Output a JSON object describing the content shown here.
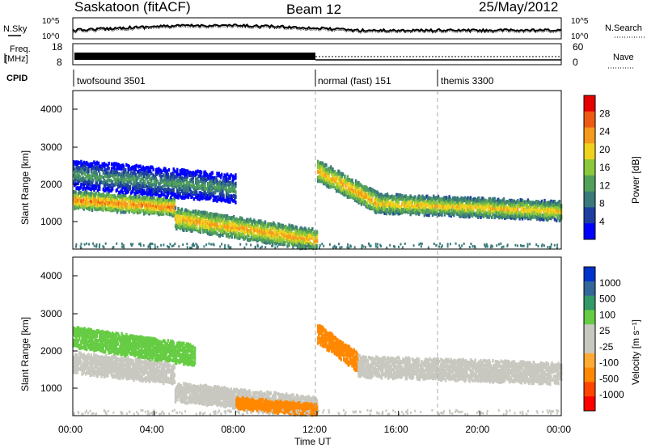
{
  "header": {
    "title": "Saskatoon (fitACF)",
    "beam": "Beam 12",
    "date": "25/May/2012"
  },
  "noise_panel": {
    "left_label": "N.Sky",
    "right_label": "N.Search",
    "left_ticks": [
      "10^5",
      "10^0"
    ],
    "right_ticks": [
      "10^5",
      "10^0"
    ]
  },
  "freq_panel": {
    "left_label_line1": "Freq.",
    "left_label_line2": "[MHz]",
    "right_label": "Nave",
    "left_ticks": [
      "18",
      "8"
    ],
    "right_ticks": [
      "60",
      "0"
    ]
  },
  "cpid_panel": {
    "label": "CPID",
    "modes": [
      {
        "name": "twofsound 3501",
        "start_hour": 0
      },
      {
        "name": "normal (fast) 151",
        "start_hour": 12
      },
      {
        "name": "themis 3300",
        "start_hour": 18
      }
    ]
  },
  "x_axis": {
    "label": "Time UT",
    "ticks": [
      "00:00",
      "04:00",
      "08:00",
      "12:00",
      "16:00",
      "20:00",
      "00:00"
    ]
  },
  "power_colorbar": {
    "label": "Power [dB]",
    "ticks": [
      "28",
      "24",
      "20",
      "16",
      "12",
      "8",
      "4"
    ]
  },
  "velocity_colorbar": {
    "label": "Velocity [m s⁻¹]",
    "ticks": [
      "1000",
      "500",
      "100",
      "25",
      "-25",
      "-100",
      "-500",
      "-1000"
    ]
  },
  "colors": {
    "power_scale": [
      "#0000ff",
      "#1e3fa0",
      "#3a7a7a",
      "#52a05a",
      "#8cc83c",
      "#f0d21e",
      "#f59a1e",
      "#ee5a14",
      "#e60000"
    ],
    "velocity_scale": [
      "#ff0000",
      "#ff4400",
      "#ff8800",
      "#ffaa33",
      "#c8c8c0",
      "#c8c8c0",
      "#66cc44",
      "#339966",
      "#336699",
      "#0033cc"
    ]
  },
  "chart_data": [
    {
      "type": "heatmap",
      "title": "Power",
      "xlabel": "",
      "ylabel": "Slant Range [km]",
      "xlim": [
        0,
        24
      ],
      "ylim": [
        180,
        4500
      ],
      "yticks": [
        "4000",
        "3000",
        "2000",
        "1000"
      ],
      "bands": [
        {
          "t0": 0,
          "t1": 5,
          "r0": 1500,
          "r1": 1300,
          "width": 400,
          "value": 26
        },
        {
          "t0": 5,
          "t1": 12,
          "r0": 1000,
          "r1": 400,
          "width": 500,
          "value": 24
        },
        {
          "t0": 0,
          "t1": 8,
          "r0": 2200,
          "r1": 1800,
          "width": 700,
          "value": 12
        },
        {
          "t0": 12,
          "t1": 15,
          "r0": 2300,
          "r1": 1400,
          "width": 500,
          "value": 24
        },
        {
          "t0": 15,
          "t1": 24,
          "r0": 1400,
          "r1": 1200,
          "width": 450,
          "value": 22
        }
      ]
    },
    {
      "type": "heatmap",
      "title": "Velocity",
      "xlabel": "Time UT",
      "ylabel": "Slant Range [km]",
      "xlim": [
        0,
        24
      ],
      "ylim": [
        180,
        4500
      ],
      "yticks": [
        "4000",
        "3000",
        "2000",
        "1000"
      ],
      "bands": [
        {
          "t0": 0,
          "t1": 5,
          "r0": 1600,
          "r1": 1300,
          "width": 500,
          "value": 0
        },
        {
          "t0": 0,
          "t1": 6,
          "r0": 2300,
          "r1": 1800,
          "width": 500,
          "value": 60
        },
        {
          "t0": 5,
          "t1": 12,
          "r0": 800,
          "r1": 400,
          "width": 450,
          "value": 0
        },
        {
          "t0": 8,
          "t1": 12,
          "r0": 500,
          "r1": 300,
          "width": 250,
          "value": -200
        },
        {
          "t0": 12,
          "t1": 14,
          "r0": 2400,
          "r1": 1600,
          "width": 450,
          "value": -400
        },
        {
          "t0": 14,
          "t1": 24,
          "r0": 1500,
          "r1": 1300,
          "width": 500,
          "value": 0
        }
      ]
    }
  ]
}
